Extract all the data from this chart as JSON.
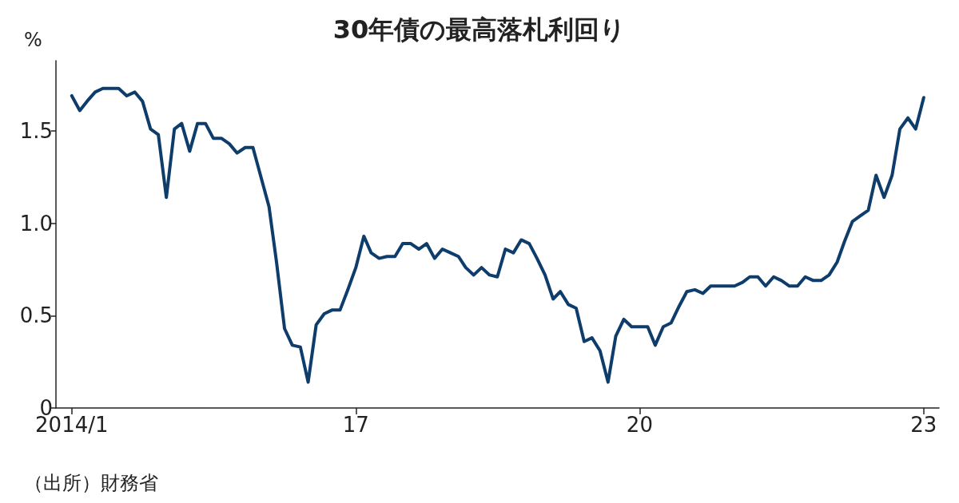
{
  "chart_data": {
    "type": "line",
    "title": "30年債の最高落札利回り",
    "ylabel": "%",
    "annotations": [
      "（出所）財務省"
    ],
    "x": [
      "2014-01",
      "2014-02",
      "2014-03",
      "2014-04",
      "2014-05",
      "2014-06",
      "2014-07",
      "2014-08",
      "2014-09",
      "2014-10",
      "2014-11",
      "2014-12",
      "2015-01",
      "2015-02",
      "2015-03",
      "2015-04",
      "2015-05",
      "2015-06",
      "2015-07",
      "2015-08",
      "2015-09",
      "2015-10",
      "2015-11",
      "2015-12",
      "2016-01",
      "2016-02",
      "2016-03",
      "2016-04",
      "2016-05",
      "2016-06",
      "2016-07",
      "2016-08",
      "2016-09",
      "2016-10",
      "2016-11",
      "2016-12",
      "2017-01",
      "2017-02",
      "2017-03",
      "2017-04",
      "2017-05",
      "2017-06",
      "2017-07",
      "2017-08",
      "2017-09",
      "2017-10",
      "2017-11",
      "2017-12",
      "2018-01",
      "2018-02",
      "2018-03",
      "2018-04",
      "2018-05",
      "2018-06",
      "2018-07",
      "2018-08",
      "2018-09",
      "2018-10",
      "2018-11",
      "2018-12",
      "2019-01",
      "2019-02",
      "2019-03",
      "2019-04",
      "2019-05",
      "2019-06",
      "2019-07",
      "2019-08",
      "2019-09",
      "2019-10",
      "2019-11",
      "2019-12",
      "2020-01",
      "2020-02",
      "2020-03",
      "2020-04",
      "2020-05",
      "2020-06",
      "2020-07",
      "2020-08",
      "2020-09",
      "2020-10",
      "2020-11",
      "2020-12",
      "2021-01",
      "2021-02",
      "2021-03",
      "2021-04",
      "2021-05",
      "2021-06",
      "2021-07",
      "2021-08",
      "2021-09",
      "2021-10",
      "2021-11",
      "2021-12",
      "2022-01",
      "2022-02",
      "2022-03",
      "2022-04",
      "2022-05",
      "2022-06",
      "2022-07",
      "2022-08",
      "2022-09",
      "2022-10",
      "2022-11",
      "2022-12",
      "2023-01"
    ],
    "series": [
      {
        "color": "#0f3d6b",
        "values": [
          1.69,
          1.61,
          1.66,
          1.71,
          1.73,
          1.73,
          1.73,
          1.69,
          1.71,
          1.66,
          1.51,
          1.48,
          1.14,
          1.51,
          1.54,
          1.39,
          1.54,
          1.54,
          1.46,
          1.46,
          1.43,
          1.38,
          1.41,
          1.41,
          1.25,
          1.09,
          0.79,
          0.43,
          0.34,
          0.33,
          0.14,
          0.45,
          0.51,
          0.53,
          0.53,
          0.64,
          0.76,
          0.93,
          0.84,
          0.81,
          0.82,
          0.82,
          0.89,
          0.89,
          0.86,
          0.89,
          0.81,
          0.86,
          0.84,
          0.82,
          0.76,
          0.72,
          0.76,
          0.72,
          0.71,
          0.86,
          0.84,
          0.91,
          0.89,
          0.81,
          0.72,
          0.59,
          0.63,
          0.56,
          0.54,
          0.36,
          0.38,
          0.31,
          0.14,
          0.39,
          0.48,
          0.44,
          0.44,
          0.44,
          0.34,
          0.44,
          0.46,
          0.55,
          0.63,
          0.64,
          0.62,
          0.66,
          0.66,
          0.66,
          0.66,
          0.68,
          0.71,
          0.71,
          0.66,
          0.71,
          0.69,
          0.66,
          0.66,
          0.71,
          0.69,
          0.69,
          0.72,
          0.79,
          0.9,
          1.01,
          1.04,
          1.07,
          1.26,
          1.14,
          1.26,
          1.51,
          1.57,
          1.51,
          1.68
        ]
      }
    ],
    "xlim": [
      "2013-11",
      "2023-03"
    ],
    "xticks": [
      {
        "value": "2014-01",
        "label": "2014/1"
      },
      {
        "value": "2017-01",
        "label": "17"
      },
      {
        "value": "2020-01",
        "label": "20"
      },
      {
        "value": "2023-01",
        "label": "23"
      }
    ],
    "ylim": [
      0,
      1.88
    ],
    "yticks": [
      0,
      {
        "value": 0.5,
        "label": "0.5"
      },
      {
        "value": 1,
        "label": "1.0"
      },
      {
        "value": 1.5,
        "label": "1.5"
      }
    ],
    "grid": false,
    "marker": "none",
    "line_style": "solid"
  }
}
